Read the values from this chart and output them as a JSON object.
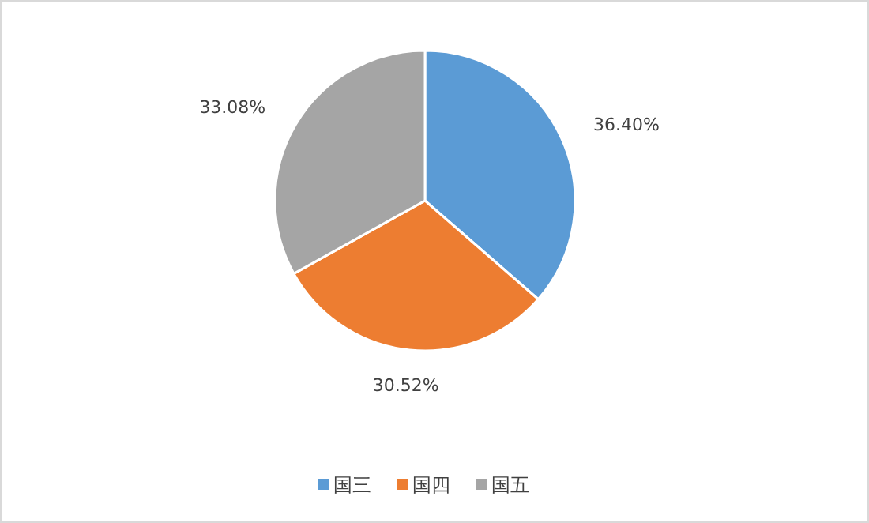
{
  "chart_data": {
    "type": "pie",
    "categories": [
      "国三",
      "国四",
      "国五"
    ],
    "values": [
      36.4,
      30.52,
      33.08
    ],
    "colors": [
      "#5b9bd5",
      "#ed7d31",
      "#a5a5a5"
    ],
    "value_labels": [
      "36.40%",
      "30.52%",
      "33.08%"
    ],
    "legend": "bottom"
  }
}
